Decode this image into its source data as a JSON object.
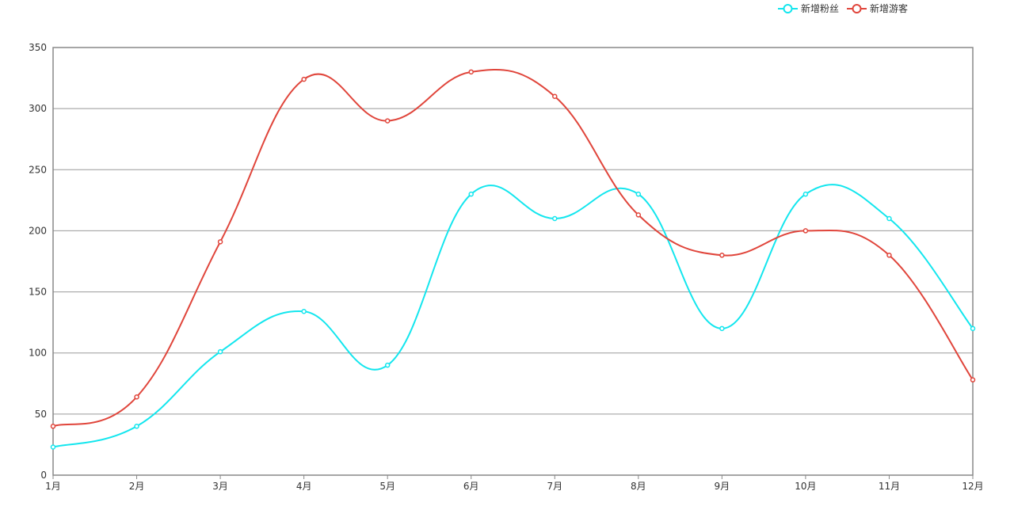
{
  "chart_data": {
    "type": "line",
    "categories": [
      "1月",
      "2月",
      "3月",
      "4月",
      "5月",
      "6月",
      "7月",
      "8月",
      "9月",
      "10月",
      "11月",
      "12月"
    ],
    "series": [
      {
        "name": "新增粉丝",
        "color": "#13e6ee",
        "values": [
          23,
          40,
          101,
          134,
          90,
          230,
          210,
          230,
          120,
          230,
          210,
          120
        ]
      },
      {
        "name": "新增游客",
        "color": "#e0453b",
        "values": [
          40,
          64,
          191,
          324,
          290,
          330,
          310,
          213,
          180,
          200,
          180,
          78
        ]
      }
    ],
    "ylim": [
      0,
      350
    ],
    "yticks": [
      0,
      50,
      100,
      150,
      200,
      250,
      300,
      350
    ],
    "grid": true,
    "smooth": true,
    "legend": "top-right"
  }
}
